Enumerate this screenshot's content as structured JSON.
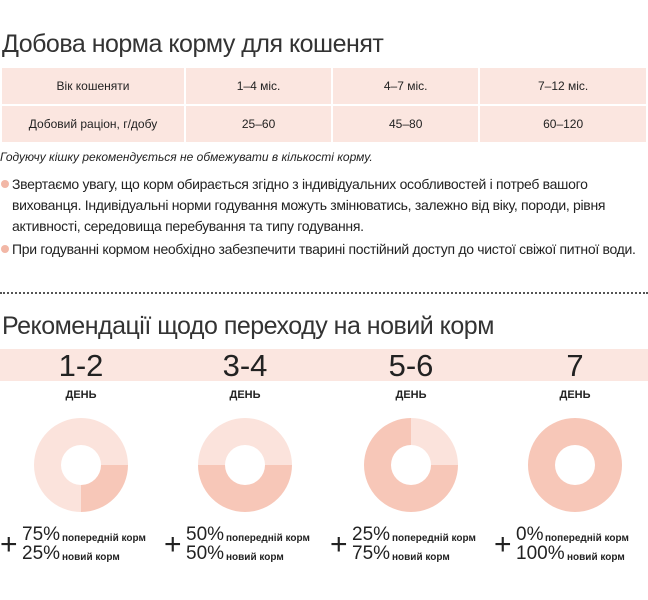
{
  "section1": {
    "title": "Добова норма корму для кошенят",
    "table": {
      "header": [
        "Вік кошеняти",
        "1–4 міс.",
        "4–7 міс.",
        "7–12 міс."
      ],
      "rows": [
        [
          "Добовий раціон, г/добу",
          "25–60",
          "45–80",
          "60–120"
        ]
      ]
    },
    "note": "Годуючу кішку рекомендується не обмежувати в кількості корму.",
    "bullets": [
      "Звертаємо увагу, що корм обирається згідно з індивідуальних особливостей і потреб вашого вихованця. Індивідуальні норми годування можуть змінюватись, залежно від віку, породи, рівня активності, середовища перебування та типу годування.",
      "При годуванні кормом необхідно забезпечити тварині постійний доступ до чистої свіжої питної води."
    ]
  },
  "section2": {
    "title": "Рекомендації щодо переходу на новий корм",
    "day_unit": "ДЕНЬ",
    "plus": "+",
    "old_text": "попередній корм",
    "new_text": "новий корм",
    "days": [
      {
        "day": "1-2",
        "old": 75,
        "old_label": "75%",
        "new": 25,
        "new_label": "25%"
      },
      {
        "day": "3-4",
        "old": 50,
        "old_label": "50%",
        "new": 50,
        "new_label": "50%"
      },
      {
        "day": "5-6",
        "old": 25,
        "old_label": "25%",
        "new": 75,
        "new_label": "75%"
      },
      {
        "day": "7",
        "old": 0,
        "old_label": "0%",
        "new": 100,
        "new_label": "100%"
      }
    ]
  }
}
